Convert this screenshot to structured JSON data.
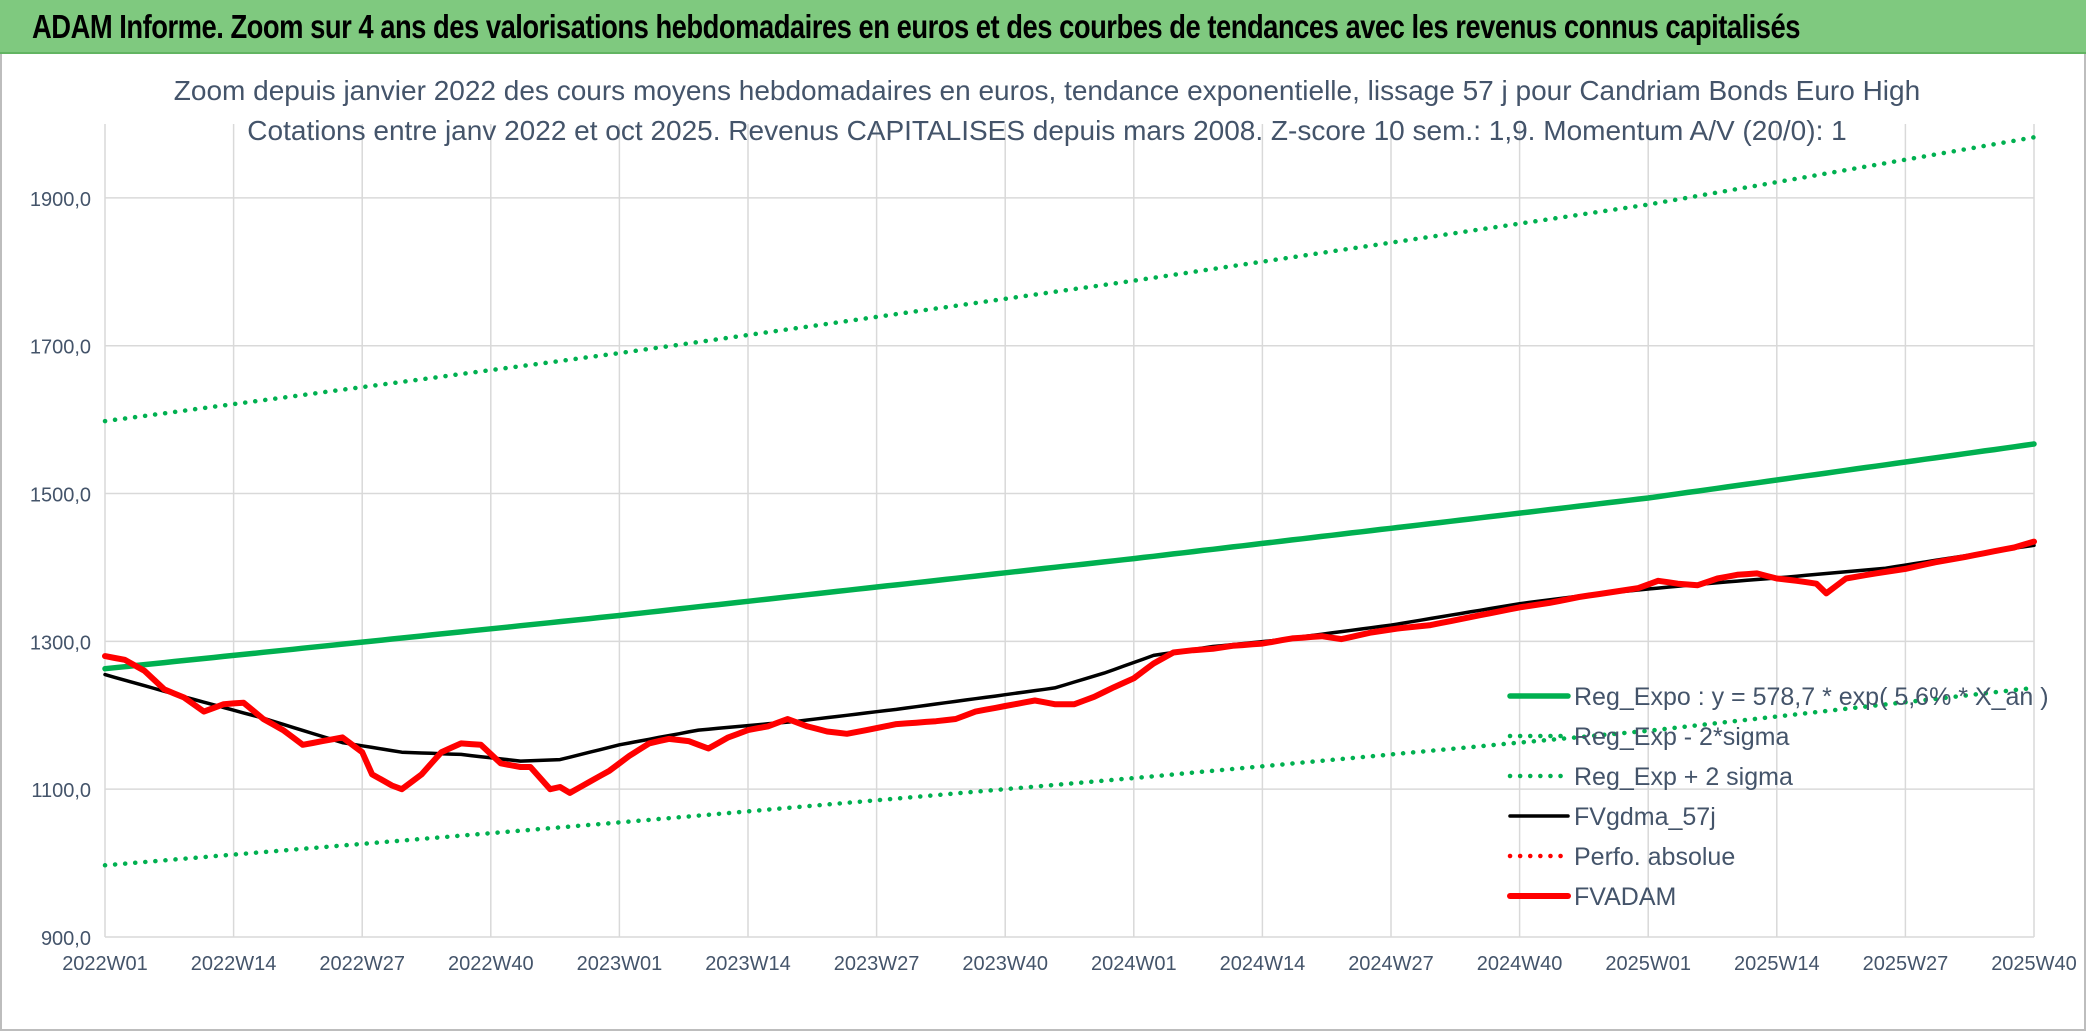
{
  "banner": {
    "title": "ADAM Informe. Zoom sur 4 ans des valorisations hebdomadaires en euros et des courbes de tendances avec les revenus connus capitalisés"
  },
  "colors": {
    "banner_bg": "#7fc97f",
    "green": "#00b050",
    "red": "#ff0000",
    "black": "#000000",
    "text": "#44546a",
    "grid": "#d9d9d9"
  },
  "chart_data": {
    "type": "line",
    "title": [
      "Zoom depuis janvier 2022 des cours moyens hebdomadaires en euros, tendance exponentielle, lissage 57 j pour Candriam Bonds Euro High",
      "Cotations entre janv 2022 et oct 2025. Revenus CAPITALISES depuis mars 2008. Z-score 10 sem.: 1,9. Momentum A/V (20/0): 1"
    ],
    "ylim": [
      900,
      2000
    ],
    "y_ticks": [
      "900,0",
      "1100,0",
      "1300,0",
      "1500,0",
      "1700,0",
      "1900,0"
    ],
    "y_tick_values": [
      900,
      1100,
      1300,
      1500,
      1700,
      1900
    ],
    "x_tick_labels": [
      "2022W01",
      "2022W14",
      "2022W27",
      "2022W40",
      "2023W01",
      "2023W14",
      "2023W27",
      "2023W40",
      "2024W01",
      "2024W14",
      "2024W27",
      "2024W40",
      "2025W01",
      "2025W14",
      "2025W27",
      "2025W40"
    ],
    "x_tick_index": [
      0,
      13,
      26,
      39,
      52,
      65,
      78,
      91,
      104,
      117,
      130,
      143,
      156,
      169,
      182,
      195
    ],
    "n_weeks": 196,
    "grid": true,
    "legend_position": "bottom-right",
    "series": [
      {
        "name": "Reg_Expo : y = 578,7 * exp( 5,6% * X_an )",
        "style": "solid-thick",
        "color": "#00b050",
        "anchors": [
          [
            0,
            1263
          ],
          [
            52,
            1335
          ],
          [
            104,
            1412
          ],
          [
            156,
            1494
          ],
          [
            195,
            1567
          ]
        ]
      },
      {
        "name": "Reg_Exp - 2*sigma",
        "style": "dotted",
        "color": "#00b050",
        "anchors": [
          [
            0,
            997
          ],
          [
            52,
            1055
          ],
          [
            104,
            1115
          ],
          [
            156,
            1179
          ],
          [
            195,
            1237
          ]
        ]
      },
      {
        "name": "Reg_Exp + 2 sigma",
        "style": "dotted",
        "color": "#00b050",
        "anchors": [
          [
            0,
            1598
          ],
          [
            52,
            1690
          ],
          [
            104,
            1788
          ],
          [
            156,
            1891
          ],
          [
            195,
            1982
          ]
        ]
      },
      {
        "name": "FVgdma_57j",
        "style": "solid",
        "color": "#000000",
        "anchors": [
          [
            0,
            1255
          ],
          [
            8,
            1225
          ],
          [
            16,
            1196
          ],
          [
            24,
            1163
          ],
          [
            30,
            1150
          ],
          [
            36,
            1147
          ],
          [
            42,
            1138
          ],
          [
            46,
            1140
          ],
          [
            52,
            1160
          ],
          [
            60,
            1180
          ],
          [
            70,
            1192
          ],
          [
            80,
            1208
          ],
          [
            90,
            1226
          ],
          [
            96,
            1237
          ],
          [
            101,
            1257
          ],
          [
            106,
            1281
          ],
          [
            112,
            1293
          ],
          [
            118,
            1301
          ],
          [
            130,
            1322
          ],
          [
            143,
            1351
          ],
          [
            150,
            1363
          ],
          [
            160,
            1376
          ],
          [
            170,
            1387
          ],
          [
            180,
            1399
          ],
          [
            190,
            1420
          ],
          [
            195,
            1430
          ]
        ]
      },
      {
        "name": "Perfo. absolue",
        "style": "dotted",
        "color": "#ff0000",
        "anchors": []
      },
      {
        "name": "FVADAM",
        "style": "solid-thick",
        "color": "#ff0000",
        "anchors": [
          [
            0,
            1280
          ],
          [
            2,
            1275
          ],
          [
            4,
            1260
          ],
          [
            6,
            1235
          ],
          [
            8,
            1224
          ],
          [
            10,
            1205
          ],
          [
            12,
            1215
          ],
          [
            14,
            1217
          ],
          [
            16,
            1195
          ],
          [
            18,
            1180
          ],
          [
            20,
            1160
          ],
          [
            22,
            1165
          ],
          [
            24,
            1170
          ],
          [
            26,
            1150
          ],
          [
            27,
            1120
          ],
          [
            29,
            1105
          ],
          [
            30,
            1100
          ],
          [
            32,
            1120
          ],
          [
            34,
            1150
          ],
          [
            36,
            1162
          ],
          [
            38,
            1160
          ],
          [
            40,
            1135
          ],
          [
            42,
            1130
          ],
          [
            43,
            1130
          ],
          [
            45,
            1100
          ],
          [
            46,
            1103
          ],
          [
            47,
            1095
          ],
          [
            49,
            1110
          ],
          [
            51,
            1125
          ],
          [
            53,
            1145
          ],
          [
            55,
            1162
          ],
          [
            57,
            1168
          ],
          [
            59,
            1165
          ],
          [
            61,
            1155
          ],
          [
            63,
            1170
          ],
          [
            65,
            1180
          ],
          [
            67,
            1185
          ],
          [
            69,
            1195
          ],
          [
            71,
            1185
          ],
          [
            73,
            1178
          ],
          [
            75,
            1175
          ],
          [
            77,
            1180
          ],
          [
            80,
            1188
          ],
          [
            82,
            1190
          ],
          [
            84,
            1192
          ],
          [
            86,
            1195
          ],
          [
            88,
            1205
          ],
          [
            90,
            1210
          ],
          [
            92,
            1215
          ],
          [
            94,
            1220
          ],
          [
            96,
            1215
          ],
          [
            98,
            1215
          ],
          [
            100,
            1225
          ],
          [
            102,
            1238
          ],
          [
            104,
            1250
          ],
          [
            106,
            1270
          ],
          [
            108,
            1285
          ],
          [
            110,
            1288
          ],
          [
            112,
            1290
          ],
          [
            114,
            1294
          ],
          [
            117,
            1297
          ],
          [
            120,
            1304
          ],
          [
            123,
            1307
          ],
          [
            125,
            1303
          ],
          [
            128,
            1312
          ],
          [
            131,
            1318
          ],
          [
            134,
            1322
          ],
          [
            137,
            1330
          ],
          [
            140,
            1338
          ],
          [
            143,
            1346
          ],
          [
            146,
            1352
          ],
          [
            149,
            1360
          ],
          [
            152,
            1366
          ],
          [
            155,
            1372
          ],
          [
            157,
            1382
          ],
          [
            159,
            1378
          ],
          [
            161,
            1376
          ],
          [
            163,
            1385
          ],
          [
            165,
            1390
          ],
          [
            167,
            1392
          ],
          [
            169,
            1385
          ],
          [
            171,
            1382
          ],
          [
            173,
            1378
          ],
          [
            174,
            1365
          ],
          [
            176,
            1385
          ],
          [
            179,
            1392
          ],
          [
            182,
            1398
          ],
          [
            185,
            1407
          ],
          [
            188,
            1414
          ],
          [
            191,
            1422
          ],
          [
            193,
            1427
          ],
          [
            195,
            1435
          ]
        ]
      }
    ]
  }
}
